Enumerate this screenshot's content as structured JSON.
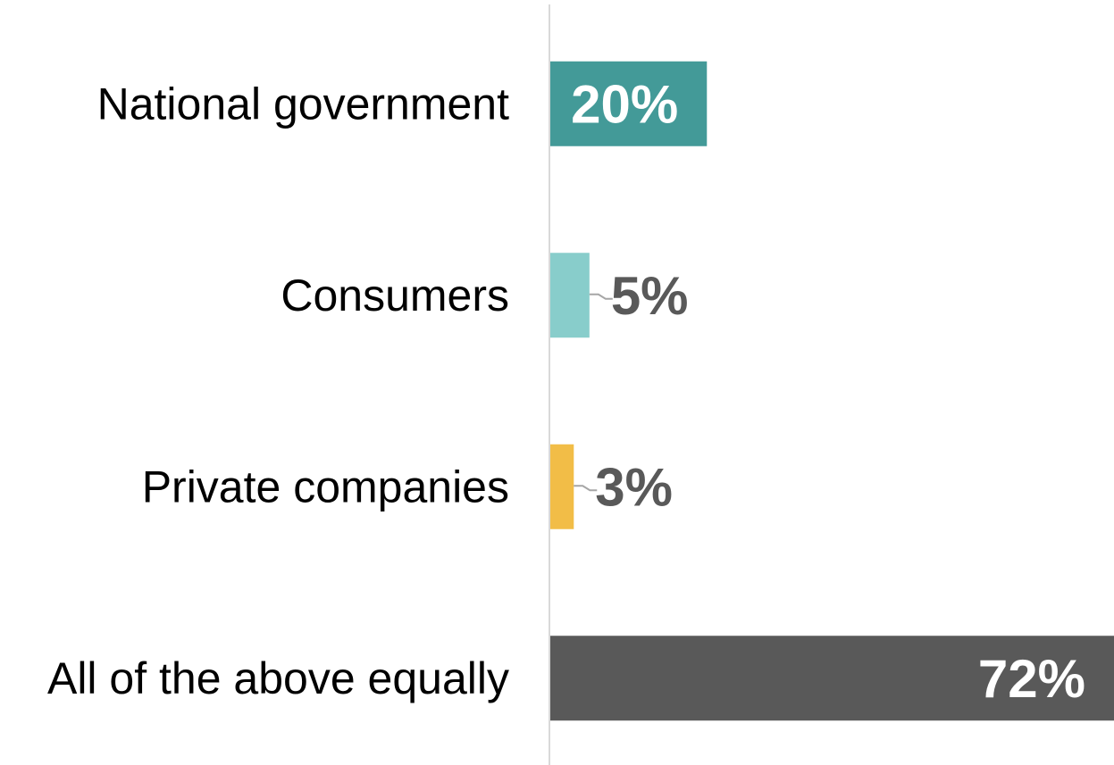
{
  "chart_data": {
    "type": "bar",
    "orientation": "horizontal",
    "categories": [
      "National government",
      "Consumers",
      "Private companies",
      "All of the above equally"
    ],
    "values": [
      20,
      5,
      3,
      72
    ],
    "value_labels": [
      "20%",
      "5%",
      "3%",
      "72%"
    ],
    "value_unit": "%",
    "xlim": [
      0,
      72
    ],
    "grid": false,
    "legend": "none",
    "title": "",
    "xlabel": "",
    "ylabel": "",
    "colors": [
      "#439A98",
      "#88CDCB",
      "#F2BD47",
      "#595959"
    ],
    "label_positions": [
      "inside",
      "outside",
      "outside",
      "inside"
    ],
    "label_colors": [
      "#ffffff",
      "#595959",
      "#595959",
      "#ffffff"
    ]
  }
}
